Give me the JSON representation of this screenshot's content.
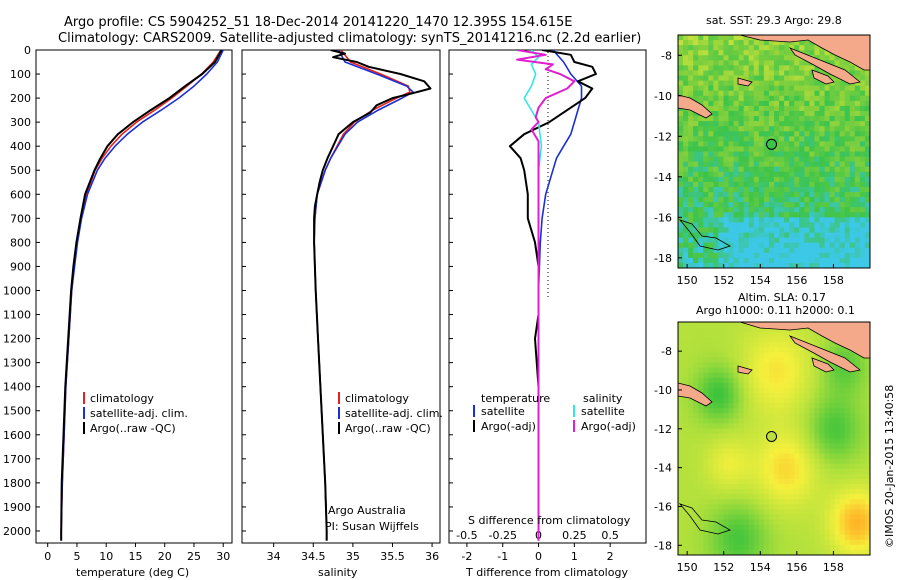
{
  "header": {
    "line1": "Argo profile: CS 5904252_51 18-Dec-2014 20141220_1470 12.395S 154.615E",
    "line2": "Climatology: CARS2009. Satellite-adjusted climatology: synTS_20141216.nc (2.2d earlier)"
  },
  "colors": {
    "climatology": "#e8211c",
    "satellite": "#1c2fd6",
    "argo": "#000000",
    "sal_sat": "#33e6e6",
    "sal_argo": "#e020d0"
  },
  "depth_axis": {
    "min": 0,
    "max": 2050,
    "ticks": [
      0,
      100,
      200,
      300,
      400,
      500,
      600,
      700,
      800,
      900,
      1000,
      1100,
      1200,
      1300,
      1400,
      1500,
      1600,
      1700,
      1800,
      1900,
      2000
    ]
  },
  "chart_data": [
    {
      "type": "line",
      "name": "temperature",
      "xlabel": "temperature (deg C)",
      "xlim": [
        -2,
        31.5
      ],
      "xticks": [
        0,
        5,
        10,
        15,
        20,
        25,
        30
      ],
      "ylim": [
        0,
        2050
      ],
      "legend": [
        "climatology",
        "satellite-adj. clim.",
        "Argo(..raw -QC)"
      ],
      "series": [
        {
          "name": "climatology",
          "depth": [
            0,
            50,
            100,
            150,
            200,
            250,
            300,
            350,
            400,
            450,
            500,
            600,
            700,
            800,
            900,
            1000,
            1200,
            1400,
            1600,
            1800,
            2000,
            2040
          ],
          "values": [
            29.6,
            28.3,
            26.3,
            23.8,
            21.2,
            18.3,
            15.2,
            12.7,
            10.8,
            9.3,
            8.1,
            6.6,
            5.7,
            5.0,
            4.5,
            4.1,
            3.6,
            3.1,
            2.8,
            2.5,
            2.3,
            2.3
          ]
        },
        {
          "name": "satellite-adj. clim.",
          "depth": [
            0,
            50,
            100,
            150,
            200,
            250,
            300,
            350,
            400,
            450,
            500,
            600,
            700,
            800,
            900,
            1000,
            1200,
            1400,
            1600,
            1800,
            2000,
            2040
          ],
          "values": [
            30.0,
            29.0,
            27.2,
            25.0,
            22.4,
            19.4,
            16.2,
            13.6,
            11.5,
            9.8,
            8.5,
            6.8,
            5.8,
            5.1,
            4.6,
            4.1,
            3.6,
            3.1,
            2.8,
            2.5,
            2.3,
            2.3
          ]
        },
        {
          "name": "Argo(..raw -QC)",
          "depth": [
            0,
            10,
            50,
            100,
            150,
            200,
            250,
            300,
            350,
            400,
            450,
            500,
            600,
            700,
            800,
            900,
            1000,
            1200,
            1400,
            1600,
            1800,
            2000,
            2040
          ],
          "values": [
            29.7,
            29.5,
            28.6,
            26.4,
            23.5,
            20.8,
            17.6,
            14.6,
            12.0,
            10.2,
            9.0,
            8.0,
            6.4,
            5.6,
            4.9,
            4.4,
            4.0,
            3.5,
            3.0,
            2.7,
            2.4,
            2.3,
            2.3
          ]
        }
      ]
    },
    {
      "type": "line",
      "name": "salinity",
      "xlabel": "salinity",
      "xlim": [
        33.6,
        36.1
      ],
      "xticks": [
        34,
        34.5,
        35,
        35.5,
        36
      ],
      "ylim": [
        0,
        2050
      ],
      "legend": [
        "climatology",
        "satellite-adj. clim.",
        "Argo(..raw -QC)"
      ],
      "annotation": [
        "Argo Australia",
        "PI: Susan Wijffels"
      ],
      "series": [
        {
          "name": "climatology",
          "depth": [
            0,
            50,
            100,
            150,
            175,
            200,
            250,
            300,
            350,
            400,
            450,
            500,
            600,
            700,
            800,
            900,
            1000,
            1200,
            1400,
            1600,
            1800,
            2000,
            2040
          ],
          "values": [
            34.85,
            34.97,
            35.35,
            35.7,
            35.72,
            35.55,
            35.25,
            35.02,
            34.88,
            34.8,
            34.72,
            34.65,
            34.55,
            34.52,
            34.51,
            34.52,
            34.53,
            34.56,
            34.59,
            34.62,
            34.65,
            34.67,
            34.67
          ]
        },
        {
          "name": "satellite-adj. clim.",
          "depth": [
            0,
            50,
            100,
            150,
            175,
            200,
            250,
            300,
            350,
            400,
            450,
            500,
            600,
            700,
            800,
            900,
            1000,
            1200,
            1400,
            1600,
            1800,
            2000,
            2040
          ],
          "values": [
            34.82,
            34.9,
            35.3,
            35.68,
            35.76,
            35.62,
            35.32,
            35.06,
            34.9,
            34.81,
            34.72,
            34.65,
            34.55,
            34.52,
            34.51,
            34.52,
            34.53,
            34.56,
            34.59,
            34.62,
            34.65,
            34.67,
            34.67
          ]
        },
        {
          "name": "Argo(..raw -QC)",
          "depth": [
            0,
            15,
            30,
            50,
            70,
            100,
            130,
            160,
            180,
            200,
            230,
            260,
            300,
            350,
            400,
            450,
            500,
            550,
            600,
            650,
            700,
            800,
            900,
            1000,
            1200,
            1400,
            1600,
            1800,
            2000,
            2040
          ],
          "values": [
            34.72,
            34.9,
            34.75,
            35.05,
            35.2,
            35.6,
            35.9,
            35.98,
            35.75,
            35.5,
            35.3,
            35.22,
            35.0,
            34.82,
            34.75,
            34.68,
            34.62,
            34.58,
            34.55,
            34.52,
            34.51,
            34.51,
            34.52,
            34.53,
            34.56,
            34.59,
            34.62,
            34.65,
            34.67,
            34.67
          ]
        }
      ]
    },
    {
      "type": "line",
      "name": "difference from climatology",
      "xlabel": "T difference from climatology",
      "xlabel_top": "S difference from climatology",
      "xlim": [
        -2.5,
        3.0
      ],
      "xticks": [
        -2,
        -1,
        0,
        1,
        2
      ],
      "xticks_top": [
        -0.5,
        -0.25,
        0,
        0.25,
        0.5
      ],
      "ylim": [
        0,
        2050
      ],
      "legend_temperature": {
        "title": "temperature",
        "items": [
          "satellite",
          "Argo(-adj)"
        ]
      },
      "legend_salinity": {
        "title": "salinity",
        "items": [
          "satellite",
          "Argo(-adj)"
        ]
      },
      "series": [
        {
          "name": "temperature satellite",
          "depth": [
            0,
            50,
            100,
            150,
            200,
            250,
            300,
            350,
            400,
            450,
            500,
            600,
            700,
            800,
            1000,
            1200,
            1500,
            2040
          ],
          "values": [
            0.4,
            0.7,
            0.9,
            1.2,
            1.2,
            1.1,
            1.0,
            0.9,
            0.7,
            0.5,
            0.4,
            0.2,
            0.1,
            0.05,
            0.0,
            0.0,
            0.0,
            0.0
          ]
        },
        {
          "name": "temperature Argo(-adj)",
          "depth": [
            0,
            20,
            50,
            70,
            100,
            130,
            160,
            200,
            250,
            300,
            350,
            400,
            450,
            500,
            600,
            700,
            800,
            900,
            1000,
            1100,
            1200,
            1400,
            2040
          ],
          "values": [
            0.1,
            0.9,
            1.0,
            1.5,
            1.6,
            1.1,
            1.5,
            1.3,
            0.8,
            0.3,
            -0.4,
            -0.8,
            -0.5,
            -0.4,
            -0.3,
            -0.3,
            -0.1,
            0.0,
            0.0,
            0.0,
            -0.1,
            0.0,
            0.0
          ]
        },
        {
          "name": "salinity satellite",
          "depth": [
            0,
            30,
            60,
            100,
            150,
            200,
            300,
            400,
            500,
            600,
            800,
            1000,
            2040
          ],
          "values": [
            -0.05,
            0.0,
            -0.05,
            -0.02,
            -0.05,
            -0.1,
            0.0,
            0.02,
            0.0,
            0.0,
            0.0,
            0.0,
            0.0
          ]
        },
        {
          "name": "salinity Argo(-adj)",
          "depth": [
            0,
            20,
            40,
            60,
            80,
            100,
            130,
            160,
            200,
            240,
            280,
            300,
            330,
            360,
            380,
            400,
            450,
            500,
            600,
            1000,
            2040
          ],
          "values": [
            -0.15,
            0.05,
            -0.15,
            0.1,
            0.05,
            0.15,
            0.25,
            0.2,
            0.05,
            0.0,
            -0.02,
            0.0,
            -0.05,
            -0.02,
            0.0,
            0.0,
            0.0,
            0.0,
            0.0,
            0.0,
            0.0
          ]
        }
      ]
    },
    {
      "type": "heatmap",
      "name": "sst map",
      "title": "sat. SST: 29.3 Argo: 29.8",
      "xlim": [
        149.5,
        160.0
      ],
      "ylim": [
        -18.5,
        -7.0
      ],
      "xticks": [
        150,
        152,
        154,
        156,
        158
      ],
      "yticks": [
        -8,
        -10,
        -12,
        -14,
        -16,
        -18
      ],
      "marker": {
        "lon": 154.615,
        "lat": -12.395
      }
    },
    {
      "type": "heatmap",
      "name": "sla map",
      "title": "Altim. SLA: 0.17",
      "subtitle": "Argo h1000: 0.11 h2000: 0.1",
      "xlim": [
        149.5,
        160.0
      ],
      "ylim": [
        -18.5,
        -6.5
      ],
      "xticks": [
        150,
        152,
        154,
        156,
        158
      ],
      "yticks": [
        -8,
        -10,
        -12,
        -14,
        -16,
        -18
      ],
      "marker": {
        "lon": 154.615,
        "lat": -12.395
      }
    }
  ],
  "stamp": "©IMOS 20-Jan-2015 13:40:58"
}
